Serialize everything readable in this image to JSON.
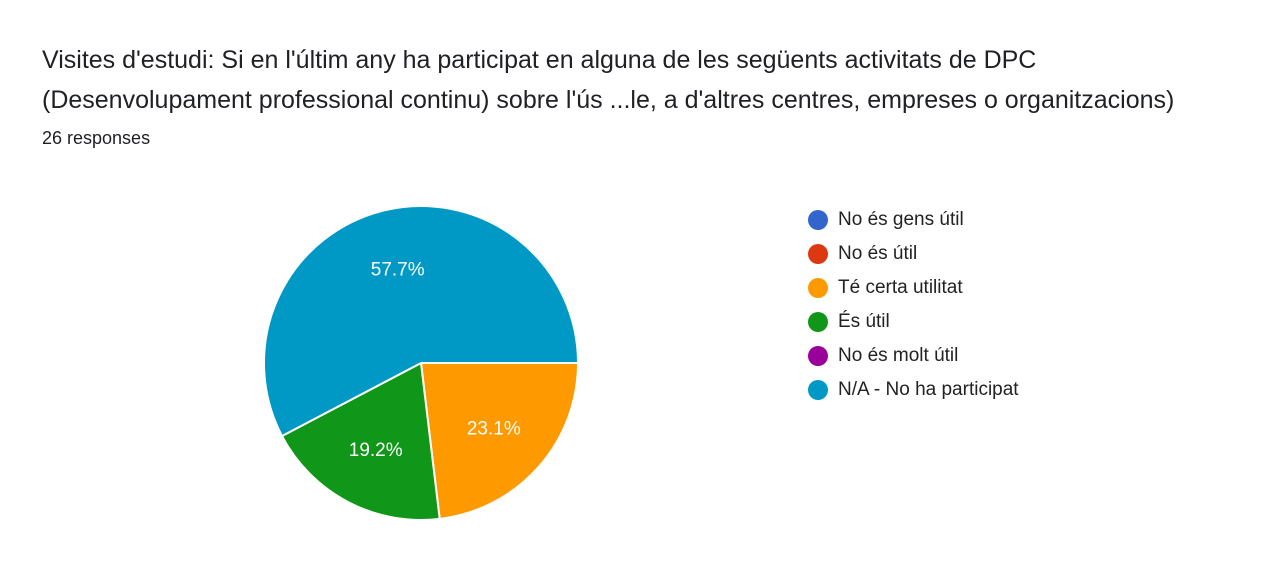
{
  "title_line1": "Visites d'estudi: Si en l'últim any ha participat en alguna de les següents activitats de DPC",
  "title_line2": "(Desenvolupament professional continu) sobre l'ús ...le, a d'altres centres, empreses o organitzacions)",
  "responses": "26 responses",
  "chart_data": {
    "type": "pie",
    "labels": [
      "No és gens útil",
      "No és útil",
      "Té certa utilitat",
      "És útil",
      "No és molt útil",
      "N/A - No ha participat"
    ],
    "values": [
      0,
      0,
      23.1,
      19.2,
      0,
      57.7
    ],
    "data_labels": [
      "",
      "",
      "23.1%",
      "19.2%",
      "",
      "57.7%"
    ],
    "colors": [
      "#3366cc",
      "#dc3912",
      "#ff9900",
      "#109618",
      "#990099",
      "#0099c6"
    ],
    "legend_position": "right"
  }
}
